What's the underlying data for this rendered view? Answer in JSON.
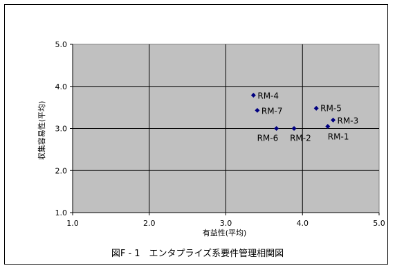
{
  "chart_data": {
    "type": "scatter",
    "xlabel": "有益性(平均)",
    "ylabel": "収集容易性(平均)",
    "xlim": [
      1.0,
      5.0
    ],
    "ylim": [
      1.0,
      5.0
    ],
    "xticks": [
      "1.0",
      "2.0",
      "3.0",
      "4.0",
      "5.0"
    ],
    "yticks": [
      "1.0",
      "2.0",
      "3.0",
      "4.0",
      "5.0"
    ],
    "grid": true,
    "plot_background": "#c0c0c0",
    "marker_color": "#000080",
    "points": [
      {
        "label": "RM-1",
        "x": 4.33,
        "y": 3.05
      },
      {
        "label": "RM-2",
        "x": 3.89,
        "y": 3.0
      },
      {
        "label": "RM-3",
        "x": 4.4,
        "y": 3.2
      },
      {
        "label": "RM-4",
        "x": 3.36,
        "y": 3.79
      },
      {
        "label": "RM-5",
        "x": 4.18,
        "y": 3.48
      },
      {
        "label": "RM-6",
        "x": 3.66,
        "y": 3.0
      },
      {
        "label": "RM-7",
        "x": 3.41,
        "y": 3.43
      }
    ]
  },
  "caption": "図F - 1　エンタプライズ系要件管理相関図"
}
